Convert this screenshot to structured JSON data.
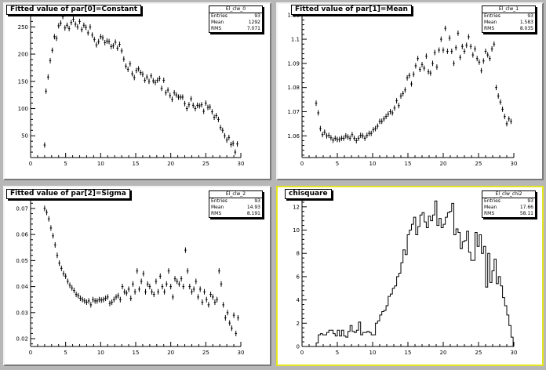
{
  "panels": [
    {
      "title": "Fitted value of par[0]=Constant",
      "stats": {
        "name": "El_clw_0",
        "rows": [
          [
            "Entries",
            "93"
          ],
          [
            "Mean",
            "1292"
          ],
          [
            "RMS",
            "7.071"
          ]
        ]
      }
    },
    {
      "title": "Fitted value of par[1]=Mean",
      "stats": {
        "name": "El_clw_1",
        "rows": [
          [
            "Entries",
            "93"
          ],
          [
            "Mean",
            "1.583"
          ],
          [
            "RMS",
            "8.035"
          ]
        ]
      }
    },
    {
      "title": "Fitted value of par[2]=Sigma",
      "stats": {
        "name": "El_clw_2",
        "rows": [
          [
            "Entries",
            "93"
          ],
          [
            "Mean",
            "14.93"
          ],
          [
            "RMS",
            "8.191"
          ]
        ]
      }
    },
    {
      "title": "chisquare",
      "stats": {
        "name": "El_clw_chi2",
        "rows": [
          [
            "Entries",
            "93"
          ],
          [
            "Mean",
            "17.66"
          ],
          [
            "RMS",
            "58.11"
          ]
        ]
      }
    }
  ],
  "colors": {
    "canvas": "#b7b7b7",
    "selected_border": "#e6e61e",
    "marker": "#000000"
  },
  "chart_data": [
    {
      "type": "scatter",
      "title": "Fitted value of par[0]=Constant",
      "xlim": [
        0,
        30
      ],
      "ylim": [
        10,
        285
      ],
      "xticks": [
        0,
        5,
        10,
        15,
        20,
        25,
        30
      ],
      "yticks": [
        50,
        100,
        150,
        200,
        250
      ],
      "error_bars": true,
      "points": [
        [
          2,
          33
        ],
        [
          2.2,
          132
        ],
        [
          2.5,
          158
        ],
        [
          2.8,
          188
        ],
        [
          3.1,
          207
        ],
        [
          3.4,
          232
        ],
        [
          3.7,
          229
        ],
        [
          4,
          252
        ],
        [
          4.3,
          257
        ],
        [
          4.6,
          269
        ],
        [
          4.9,
          248
        ],
        [
          5.2,
          253
        ],
        [
          5.5,
          247
        ],
        [
          5.8,
          258
        ],
        [
          6.1,
          264
        ],
        [
          6.4,
          255
        ],
        [
          6.7,
          250
        ],
        [
          7,
          260
        ],
        [
          7.3,
          245
        ],
        [
          7.6,
          253
        ],
        [
          7.9,
          249
        ],
        [
          8.2,
          239
        ],
        [
          8.5,
          250
        ],
        [
          8.8,
          235
        ],
        [
          9.1,
          227
        ],
        [
          9.4,
          217
        ],
        [
          9.7,
          223
        ],
        [
          10,
          232
        ],
        [
          10.3,
          230
        ],
        [
          10.6,
          221
        ],
        [
          10.9,
          224
        ],
        [
          11.2,
          223
        ],
        [
          11.5,
          214
        ],
        [
          11.8,
          215
        ],
        [
          12.1,
          222
        ],
        [
          12.4,
          211
        ],
        [
          12.7,
          218
        ],
        [
          13,
          206
        ],
        [
          13.3,
          191
        ],
        [
          13.6,
          178
        ],
        [
          13.9,
          172
        ],
        [
          14.2,
          182
        ],
        [
          14.5,
          164
        ],
        [
          14.8,
          157
        ],
        [
          15.1,
          170
        ],
        [
          15.4,
          173
        ],
        [
          15.7,
          166
        ],
        [
          16,
          163
        ],
        [
          16.3,
          152
        ],
        [
          16.6,
          158
        ],
        [
          16.9,
          150
        ],
        [
          17.2,
          160
        ],
        [
          17.5,
          151
        ],
        [
          17.8,
          148
        ],
        [
          18.1,
          152
        ],
        [
          18.4,
          155
        ],
        [
          18.7,
          137
        ],
        [
          19,
          152
        ],
        [
          19.3,
          129
        ],
        [
          19.6,
          134
        ],
        [
          19.9,
          124
        ],
        [
          20.2,
          117
        ],
        [
          20.5,
          129
        ],
        [
          20.8,
          125
        ],
        [
          21.1,
          121
        ],
        [
          21.4,
          121
        ],
        [
          21.7,
          121
        ],
        [
          22,
          109
        ],
        [
          22.3,
          100
        ],
        [
          22.6,
          107
        ],
        [
          22.9,
          118
        ],
        [
          23.2,
          106
        ],
        [
          23.5,
          100
        ],
        [
          23.8,
          106
        ],
        [
          24.1,
          105
        ],
        [
          24.4,
          107
        ],
        [
          24.7,
          95
        ],
        [
          25,
          110
        ],
        [
          25.3,
          102
        ],
        [
          25.6,
          103
        ],
        [
          25.9,
          94
        ],
        [
          26.2,
          84
        ],
        [
          26.5,
          87
        ],
        [
          26.8,
          80
        ],
        [
          27.1,
          65
        ],
        [
          27.4,
          60
        ],
        [
          27.7,
          50
        ],
        [
          28,
          42
        ],
        [
          28.3,
          47
        ],
        [
          28.6,
          34
        ],
        [
          28.9,
          36
        ],
        [
          29.2,
          20
        ],
        [
          29.5,
          35
        ]
      ]
    },
    {
      "type": "scatter",
      "title": "Fitted value of par[1]=Mean",
      "xlim": [
        0,
        30
      ],
      "ylim": [
        1.051,
        1.113
      ],
      "xticks": [
        0,
        5,
        10,
        15,
        20,
        25,
        30
      ],
      "yticks": [
        1.06,
        1.07,
        1.08,
        1.09,
        1.1,
        1.11
      ],
      "error_bars": true,
      "points": [
        [
          2,
          1.0735
        ],
        [
          2.3,
          1.0695
        ],
        [
          2.6,
          1.063
        ],
        [
          2.9,
          1.0605
        ],
        [
          3.2,
          1.0615
        ],
        [
          3.5,
          1.06
        ],
        [
          3.8,
          1.0602
        ],
        [
          4.1,
          1.0592
        ],
        [
          4.4,
          1.0582
        ],
        [
          4.7,
          1.059
        ],
        [
          5,
          1.0585
        ],
        [
          5.3,
          1.0585
        ],
        [
          5.6,
          1.059
        ],
        [
          5.9,
          1.059
        ],
        [
          6.2,
          1.06
        ],
        [
          6.5,
          1.0595
        ],
        [
          6.8,
          1.059
        ],
        [
          7.1,
          1.0605
        ],
        [
          7.4,
          1.059
        ],
        [
          7.7,
          1.058
        ],
        [
          8,
          1.059
        ],
        [
          8.3,
          1.0602
        ],
        [
          8.6,
          1.06
        ],
        [
          8.9,
          1.059
        ],
        [
          9.2,
          1.0602
        ],
        [
          9.5,
          1.061
        ],
        [
          9.8,
          1.061
        ],
        [
          10.1,
          1.0625
        ],
        [
          10.4,
          1.063
        ],
        [
          10.7,
          1.064
        ],
        [
          11,
          1.066
        ],
        [
          11.3,
          1.066
        ],
        [
          11.6,
          1.067
        ],
        [
          11.9,
          1.068
        ],
        [
          12.2,
          1.069
        ],
        [
          12.5,
          1.07
        ],
        [
          12.8,
          1.0695
        ],
        [
          13.1,
          1.0715
        ],
        [
          13.4,
          1.0745
        ],
        [
          13.7,
          1.0725
        ],
        [
          14,
          1.0765
        ],
        [
          14.3,
          1.0775
        ],
        [
          14.6,
          1.079
        ],
        [
          14.9,
          1.084
        ],
        [
          15.2,
          1.085
        ],
        [
          15.5,
          1.0815
        ],
        [
          15.8,
          1.0855
        ],
        [
          16.1,
          1.089
        ],
        [
          16.4,
          1.092
        ],
        [
          16.7,
          1.0875
        ],
        [
          17,
          1.0895
        ],
        [
          17.3,
          1.088
        ],
        [
          17.6,
          1.093
        ],
        [
          17.9,
          1.0865
        ],
        [
          18.2,
          1.086
        ],
        [
          18.5,
          1.09
        ],
        [
          18.8,
          1.0945
        ],
        [
          19.1,
          1.0885
        ],
        [
          19.4,
          1.0955
        ],
        [
          19.7,
          1.1
        ],
        [
          20,
          1.0955
        ],
        [
          20.3,
          1.1045
        ],
        [
          20.6,
          1.095
        ],
        [
          20.9,
          1.1005
        ],
        [
          21.2,
          1.095
        ],
        [
          21.5,
          1.09
        ],
        [
          21.8,
          1.0965
        ],
        [
          22.1,
          1.1025
        ],
        [
          22.4,
          1.0925
        ],
        [
          22.7,
          1.097
        ],
        [
          23,
          1.095
        ],
        [
          23.3,
          1.0975
        ],
        [
          23.6,
          1.101
        ],
        [
          23.9,
          1.097
        ],
        [
          24.2,
          1.0935
        ],
        [
          24.5,
          1.096
        ],
        [
          24.8,
          1.092
        ],
        [
          25.1,
          1.0905
        ],
        [
          25.4,
          1.087
        ],
        [
          25.7,
          1.091
        ],
        [
          26,
          1.095
        ],
        [
          26.3,
          1.0935
        ],
        [
          26.6,
          1.092
        ],
        [
          26.9,
          1.096
        ],
        [
          27.2,
          1.098
        ],
        [
          27.5,
          1.08
        ],
        [
          27.8,
          1.0765
        ],
        [
          28.1,
          1.074
        ],
        [
          28.4,
          1.071
        ],
        [
          28.7,
          1.068
        ],
        [
          29,
          1.065
        ],
        [
          29.3,
          1.067
        ],
        [
          29.6,
          1.066
        ]
      ]
    },
    {
      "type": "scatter",
      "title": "Fitted value of par[2]=Sigma",
      "xlim": [
        0,
        30
      ],
      "ylim": [
        0.017,
        0.076
      ],
      "xticks": [
        0,
        5,
        10,
        15,
        20,
        25,
        30
      ],
      "yticks": [
        0.02,
        0.03,
        0.04,
        0.05,
        0.06,
        0.07
      ],
      "error_bars": true,
      "points": [
        [
          2,
          0.07
        ],
        [
          2.3,
          0.0685
        ],
        [
          2.6,
          0.066
        ],
        [
          2.9,
          0.0625
        ],
        [
          3.2,
          0.0595
        ],
        [
          3.5,
          0.056
        ],
        [
          3.8,
          0.052
        ],
        [
          4.1,
          0.049
        ],
        [
          4.4,
          0.047
        ],
        [
          4.7,
          0.045
        ],
        [
          5,
          0.044
        ],
        [
          5.3,
          0.042
        ],
        [
          5.6,
          0.0405
        ],
        [
          5.9,
          0.0395
        ],
        [
          6.2,
          0.0385
        ],
        [
          6.5,
          0.037
        ],
        [
          6.8,
          0.0365
        ],
        [
          7.1,
          0.0355
        ],
        [
          7.4,
          0.035
        ],
        [
          7.7,
          0.0345
        ],
        [
          8,
          0.034
        ],
        [
          8.3,
          0.0345
        ],
        [
          8.6,
          0.033
        ],
        [
          8.9,
          0.035
        ],
        [
          9.2,
          0.0345
        ],
        [
          9.5,
          0.0345
        ],
        [
          9.8,
          0.035
        ],
        [
          10.1,
          0.0348
        ],
        [
          10.4,
          0.035
        ],
        [
          10.7,
          0.0355
        ],
        [
          11,
          0.036
        ],
        [
          11.3,
          0.0335
        ],
        [
          11.6,
          0.034
        ],
        [
          11.9,
          0.035
        ],
        [
          12.2,
          0.036
        ],
        [
          12.5,
          0.0365
        ],
        [
          12.8,
          0.035
        ],
        [
          13.1,
          0.04
        ],
        [
          13.4,
          0.038
        ],
        [
          13.7,
          0.0375
        ],
        [
          14,
          0.039
        ],
        [
          14.3,
          0.0355
        ],
        [
          14.6,
          0.041
        ],
        [
          14.9,
          0.038
        ],
        [
          15.2,
          0.046
        ],
        [
          15.5,
          0.039
        ],
        [
          15.8,
          0.042
        ],
        [
          16.1,
          0.045
        ],
        [
          16.4,
          0.038
        ],
        [
          16.7,
          0.041
        ],
        [
          17,
          0.04
        ],
        [
          17.3,
          0.038
        ],
        [
          17.6,
          0.037
        ],
        [
          17.9,
          0.042
        ],
        [
          18.2,
          0.038
        ],
        [
          18.5,
          0.044
        ],
        [
          18.8,
          0.04
        ],
        [
          19.1,
          0.038
        ],
        [
          19.4,
          0.041
        ],
        [
          19.7,
          0.046
        ],
        [
          20,
          0.04
        ],
        [
          20.3,
          0.036
        ],
        [
          20.6,
          0.043
        ],
        [
          20.9,
          0.042
        ],
        [
          21.2,
          0.041
        ],
        [
          21.5,
          0.043
        ],
        [
          21.8,
          0.04
        ],
        [
          22.1,
          0.054
        ],
        [
          22.4,
          0.046
        ],
        [
          22.7,
          0.04
        ],
        [
          23,
          0.038
        ],
        [
          23.3,
          0.039
        ],
        [
          23.6,
          0.042
        ],
        [
          23.9,
          0.036
        ],
        [
          24.2,
          0.039
        ],
        [
          24.5,
          0.034
        ],
        [
          24.8,
          0.038
        ],
        [
          25.1,
          0.035
        ],
        [
          25.4,
          0.033
        ],
        [
          25.7,
          0.037
        ],
        [
          26,
          0.036
        ],
        [
          26.3,
          0.034
        ],
        [
          26.6,
          0.035
        ],
        [
          26.9,
          0.046
        ],
        [
          27.2,
          0.041
        ],
        [
          27.5,
          0.033
        ],
        [
          27.8,
          0.028
        ],
        [
          28.1,
          0.03
        ],
        [
          28.4,
          0.026
        ],
        [
          28.7,
          0.024
        ],
        [
          29,
          0.029
        ],
        [
          29.3,
          0.022
        ],
        [
          29.6,
          0.028
        ]
      ]
    },
    {
      "type": "bar",
      "title": "chisquare",
      "histogram": true,
      "xlim": [
        0,
        30
      ],
      "ylim": [
        0,
        13.2
      ],
      "xticks": [
        0,
        5,
        10,
        15,
        20,
        25,
        30
      ],
      "yticks": [
        0,
        2,
        4,
        6,
        8,
        10,
        12
      ],
      "bin_start": 2,
      "bin_width": 0.3,
      "values": [
        0.3,
        1,
        1.1,
        1,
        1,
        1.2,
        1.4,
        1.4,
        1.1,
        0.9,
        1.4,
        0.9,
        1.4,
        0.9,
        0.8,
        1.3,
        1.8,
        1.3,
        1.2,
        1.4,
        2.1,
        1,
        1.2,
        1.2,
        1.3,
        1.2,
        1,
        1,
        2,
        2.2,
        2.7,
        3,
        3.1,
        3.5,
        4.3,
        4.5,
        5,
        5.2,
        6,
        6.3,
        7.2,
        8.3,
        7.9,
        9.6,
        10,
        10.5,
        11.1,
        9.6,
        10.3,
        11.3,
        11.5,
        10.7,
        10.2,
        11.2,
        10.8,
        11.3,
        12.5,
        10.4,
        11,
        10.2,
        10.5,
        11.1,
        11.5,
        11.6,
        12.3,
        9.6,
        10.1,
        9.8,
        8.4,
        9,
        9.1,
        9.9,
        8.1,
        7.4,
        7.4,
        9.8,
        8.6,
        9.6,
        8,
        8.6,
        5.1,
        8,
        5.5,
        6.5,
        7.5,
        5.4,
        6,
        5.2,
        4.2,
        3.5,
        2.7,
        1.8,
        0.8
      ]
    }
  ]
}
